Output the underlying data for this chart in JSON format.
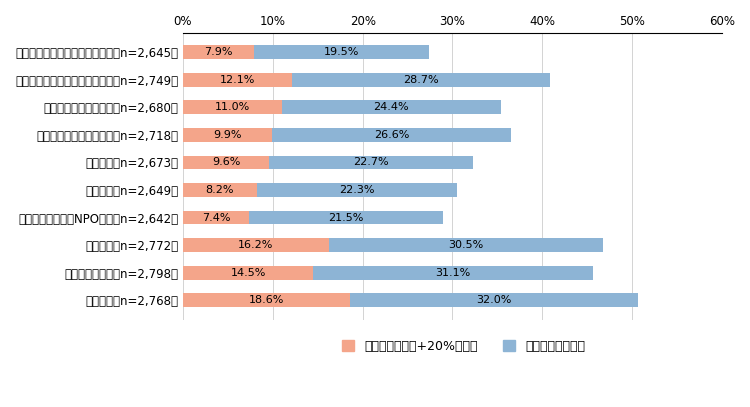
{
  "categories": [
    "国会・地方議員（秘書を含む）（n=2,645）",
    "国や他の自治体などの行政機関（n=2,749）",
    "首長や総務・企画部局（n=2,680）",
    "所属する部局以外の部局（n=2,718）",
    "業界団体（n=2,673）",
    "民間企業（n=2,649）",
    "地元の地域団体やNPO団体（n=2,642）",
    "地域住民（n=2,772）",
    "自然災害や事故（n=2,798）",
    "経年劣化（n=2,768）"
  ],
  "values_increase": [
    7.9,
    12.1,
    11.0,
    9.9,
    9.6,
    8.2,
    7.4,
    16.2,
    14.5,
    18.6
  ],
  "values_slight": [
    19.5,
    28.7,
    24.4,
    26.6,
    22.7,
    22.3,
    21.5,
    30.5,
    31.1,
    32.0
  ],
  "color_increase": "#f4a58a",
  "color_slight": "#8db4d5",
  "xlim": [
    0,
    60
  ],
  "xticks": [
    0,
    10,
    20,
    30,
    40,
    50,
    60
  ],
  "xticklabels": [
    "0%",
    "10%",
    "20%",
    "30%",
    "40%",
    "50%",
    "60%"
  ],
  "legend_increase": "増加している（+20%以上）",
  "legend_slight": "やや増加している",
  "background_color": "#ffffff",
  "bar_height": 0.5,
  "font_size_labels": 8.0,
  "font_size_ticks": 8.5,
  "font_size_legend": 9.0
}
